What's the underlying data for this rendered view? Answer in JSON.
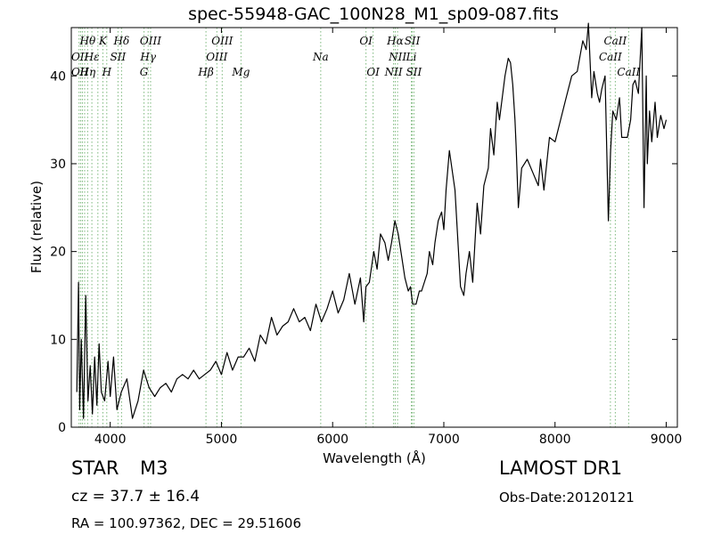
{
  "chart_data": {
    "type": "line",
    "title": "spec-55948-GAC_100N28_M1_sp09-087.fits",
    "xlabel": "Wavelength (Å)",
    "ylabel": "Flux (relative)",
    "xlim": [
      3650,
      9100
    ],
    "ylim": [
      0,
      45.5
    ],
    "x_ticks": [
      4000,
      5000,
      6000,
      7000,
      8000,
      9000
    ],
    "y_ticks": [
      0,
      10,
      20,
      30,
      40
    ],
    "grid": false,
    "series": [
      {
        "color": "#000000",
        "x": [
          3700,
          3715,
          3725,
          3740,
          3760,
          3780,
          3800,
          3820,
          3840,
          3860,
          3880,
          3900,
          3920,
          3950,
          3980,
          4000,
          4030,
          4060,
          4100,
          4150,
          4200,
          4250,
          4300,
          4350,
          4400,
          4450,
          4500,
          4550,
          4600,
          4650,
          4700,
          4750,
          4800,
          4850,
          4900,
          4950,
          5000,
          5050,
          5100,
          5150,
          5200,
          5250,
          5300,
          5350,
          5400,
          5450,
          5500,
          5550,
          5600,
          5650,
          5700,
          5750,
          5800,
          5850,
          5900,
          5950,
          6000,
          6050,
          6100,
          6150,
          6200,
          6250,
          6280,
          6300,
          6330,
          6370,
          6400,
          6430,
          6470,
          6500,
          6530,
          6560,
          6590,
          6620,
          6650,
          6680,
          6700,
          6720,
          6750,
          6780,
          6800,
          6850,
          6870,
          6900,
          6920,
          6950,
          6980,
          7000,
          7020,
          7050,
          7100,
          7150,
          7180,
          7200,
          7230,
          7260,
          7300,
          7330,
          7360,
          7400,
          7420,
          7450,
          7480,
          7500,
          7550,
          7580,
          7600,
          7620,
          7640,
          7650,
          7670,
          7700,
          7750,
          7800,
          7850,
          7870,
          7900,
          7950,
          8000,
          8050,
          8100,
          8150,
          8200,
          8250,
          8280,
          8300,
          8330,
          8350,
          8380,
          8400,
          8420,
          8450,
          8480,
          8500,
          8520,
          8550,
          8580,
          8600,
          8650,
          8680,
          8700,
          8720,
          8750,
          8780,
          8800,
          8820,
          8830,
          8850,
          8870,
          8900,
          8920,
          8950,
          8980,
          9000
        ],
        "values": [
          4.0,
          16.5,
          2.0,
          10.0,
          1.0,
          15.0,
          3.0,
          7.0,
          1.5,
          8.0,
          2.5,
          9.5,
          4.0,
          3.0,
          7.5,
          3.5,
          8.0,
          2.0,
          4.0,
          5.5,
          1.0,
          3.0,
          6.5,
          4.5,
          3.5,
          4.5,
          5.0,
          4.0,
          5.5,
          6.0,
          5.5,
          6.5,
          5.5,
          6.0,
          6.5,
          7.5,
          6.0,
          8.5,
          6.5,
          8.0,
          8.0,
          9.0,
          7.5,
          10.5,
          9.5,
          12.5,
          10.5,
          11.5,
          12.0,
          13.5,
          12.0,
          12.5,
          11.0,
          14.0,
          12.0,
          13.5,
          15.5,
          13.0,
          14.5,
          17.5,
          14.0,
          17.0,
          12.0,
          16.0,
          16.5,
          20.0,
          18.0,
          22.0,
          21.0,
          19.0,
          21.0,
          23.5,
          22.0,
          19.5,
          17.0,
          15.5,
          16.0,
          14.0,
          14.0,
          15.5,
          15.5,
          17.5,
          20.0,
          18.5,
          21.0,
          23.5,
          24.5,
          22.5,
          27.0,
          31.5,
          27.0,
          16.0,
          15.0,
          17.5,
          20.0,
          16.5,
          25.5,
          22.0,
          27.5,
          29.5,
          34.0,
          31.0,
          37.0,
          35.0,
          40.0,
          42.0,
          41.5,
          39.0,
          35.0,
          32.0,
          25.0,
          29.5,
          30.5,
          29.0,
          27.5,
          30.5,
          27.0,
          33.0,
          32.5,
          35.0,
          37.5,
          40.0,
          40.5,
          44.0,
          43.0,
          46.0,
          37.5,
          40.5,
          38.0,
          37.0,
          38.5,
          40.0,
          23.5,
          31.5,
          36.0,
          35.0,
          37.5,
          33.0,
          33.0,
          35.0,
          39.0,
          39.5,
          38.0,
          45.5,
          25.0,
          40.0,
          30.0,
          36.0,
          32.5,
          37.0,
          33.0,
          35.5,
          34.0,
          35.0
        ]
      }
    ],
    "line_markers": [
      {
        "x": 3720,
        "color": "#7cb87c"
      },
      {
        "x": 3735,
        "color": "#7cb87c"
      },
      {
        "x": 3750,
        "color": "#7cb87c"
      },
      {
        "x": 3770,
        "color": "#7cb87c"
      },
      {
        "x": 3797,
        "color": "#7cb87c"
      },
      {
        "x": 3835,
        "color": "#7cb87c"
      },
      {
        "x": 3889,
        "color": "#7cb87c"
      },
      {
        "x": 3934,
        "color": "#7cb87c"
      },
      {
        "x": 3969,
        "color": "#7cb87c"
      },
      {
        "x": 4070,
        "color": "#7cb87c"
      },
      {
        "x": 4102,
        "color": "#7cb87c"
      },
      {
        "x": 4304,
        "color": "#7cb87c"
      },
      {
        "x": 4341,
        "color": "#7cb87c"
      },
      {
        "x": 4363,
        "color": "#7cb87c"
      },
      {
        "x": 4861,
        "color": "#7cb87c"
      },
      {
        "x": 4959,
        "color": "#7cb87c"
      },
      {
        "x": 5007,
        "color": "#7cb87c"
      },
      {
        "x": 5176,
        "color": "#7cb87c"
      },
      {
        "x": 5893,
        "color": "#7cb87c"
      },
      {
        "x": 6300,
        "color": "#7cb87c"
      },
      {
        "x": 6364,
        "color": "#7cb87c"
      },
      {
        "x": 6548,
        "color": "#7cb87c"
      },
      {
        "x": 6563,
        "color": "#7cb87c"
      },
      {
        "x": 6584,
        "color": "#7cb87c"
      },
      {
        "x": 6708,
        "color": "#7cb87c"
      },
      {
        "x": 6716,
        "color": "#7cb87c"
      },
      {
        "x": 6731,
        "color": "#7cb87c"
      },
      {
        "x": 8498,
        "color": "#7cb87c"
      },
      {
        "x": 8542,
        "color": "#7cb87c"
      },
      {
        "x": 8662,
        "color": "#7cb87c"
      }
    ],
    "line_labels": [
      {
        "text": "Hθ",
        "x": 3797,
        "row": 0
      },
      {
        "text": "K",
        "x": 3934,
        "row": 0
      },
      {
        "text": "Hδ",
        "x": 4102,
        "row": 0
      },
      {
        "text": "OIII",
        "x": 4363,
        "row": 0
      },
      {
        "text": "OIII",
        "x": 5007,
        "row": 0
      },
      {
        "text": "OI",
        "x": 6300,
        "row": 0
      },
      {
        "text": "Hα",
        "x": 6563,
        "row": 0
      },
      {
        "text": "SII",
        "x": 6716,
        "row": 0
      },
      {
        "text": "CaII",
        "x": 8542,
        "row": 0
      },
      {
        "text": "OII",
        "x": 3727,
        "row": 1
      },
      {
        "text": "Hε",
        "x": 3835,
        "row": 1
      },
      {
        "text": "SII",
        "x": 4070,
        "row": 1
      },
      {
        "text": "Hγ",
        "x": 4341,
        "row": 1
      },
      {
        "text": "OIII",
        "x": 4959,
        "row": 1
      },
      {
        "text": "Na",
        "x": 5893,
        "row": 1
      },
      {
        "text": "NII",
        "x": 6584,
        "row": 1
      },
      {
        "text": "Li",
        "x": 6708,
        "row": 1
      },
      {
        "text": "CaII",
        "x": 8498,
        "row": 1
      },
      {
        "text": "OII",
        "x": 3727,
        "row": 2
      },
      {
        "text": "Hη",
        "x": 3797,
        "row": 2
      },
      {
        "text": "H",
        "x": 3969,
        "row": 2
      },
      {
        "text": "G",
        "x": 4304,
        "row": 2
      },
      {
        "text": "Hβ",
        "x": 4861,
        "row": 2
      },
      {
        "text": "Mg",
        "x": 5176,
        "row": 2
      },
      {
        "text": "OI",
        "x": 6364,
        "row": 2
      },
      {
        "text": "NII",
        "x": 6548,
        "row": 2
      },
      {
        "text": "SII",
        "x": 6731,
        "row": 2
      },
      {
        "text": "CaII",
        "x": 8662,
        "row": 2
      }
    ]
  },
  "info": {
    "object_class": "STAR",
    "subclass": "M3",
    "survey": "LAMOST DR1",
    "redshift_text": "cz = 37.7 ± 16.4",
    "obs_date": "Obs-Date:20120121",
    "coords": "RA = 100.97362, DEC = 29.51606"
  }
}
